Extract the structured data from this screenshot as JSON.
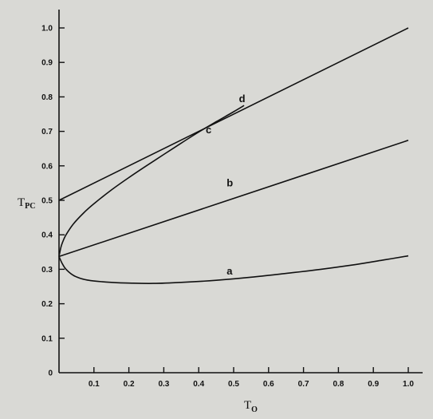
{
  "chart_data": {
    "type": "line",
    "title": "",
    "xlabel": {
      "main": "T",
      "sub": "O"
    },
    "ylabel": {
      "main": "T",
      "sub": "PC"
    },
    "xlim": [
      0,
      1.0
    ],
    "ylim": [
      0,
      1.0
    ],
    "grid": false,
    "x_ticks": [
      "0.1",
      "0.2",
      "0.3",
      "0.4",
      "0.5",
      "0.6",
      "0.7",
      "0.8",
      "0.9",
      "1.0"
    ],
    "y_ticks": [
      "0",
      "0.1",
      "0.2",
      "0.3",
      "0.4",
      "0.5",
      "0.6",
      "0.7",
      "0.8",
      "0.9",
      "1.0"
    ],
    "series": [
      {
        "name": "a",
        "label_at": [
          0.48,
          0.285
        ],
        "x": [
          0,
          0.01,
          0.02,
          0.04,
          0.06,
          0.08,
          0.1,
          0.15,
          0.2,
          0.27,
          0.35,
          0.45,
          0.55,
          0.65,
          0.75,
          0.85,
          0.93,
          1.0
        ],
        "y": [
          0.337,
          0.315,
          0.3,
          0.283,
          0.274,
          0.269,
          0.266,
          0.262,
          0.26,
          0.259,
          0.262,
          0.268,
          0.277,
          0.288,
          0.3,
          0.314,
          0.327,
          0.339
        ]
      },
      {
        "name": "b",
        "label_at": [
          0.48,
          0.54
        ],
        "x": [
          0,
          1.0
        ],
        "y": [
          0.337,
          0.674
        ]
      },
      {
        "name": "c",
        "label_at": [
          0.42,
          0.695
        ],
        "x": [
          0,
          0.005,
          0.01,
          0.02,
          0.04,
          0.07,
          0.1,
          0.15,
          0.2,
          0.25,
          0.3,
          0.35,
          0.4,
          0.45,
          0.5,
          0.53
        ],
        "y": [
          0.337,
          0.362,
          0.378,
          0.4,
          0.43,
          0.463,
          0.49,
          0.53,
          0.566,
          0.6,
          0.633,
          0.666,
          0.698,
          0.728,
          0.757,
          0.775
        ]
      },
      {
        "name": "d",
        "label_at": [
          0.515,
          0.785
        ],
        "x": [
          0,
          1.0
        ],
        "y": [
          0.5,
          1.0
        ]
      }
    ]
  }
}
